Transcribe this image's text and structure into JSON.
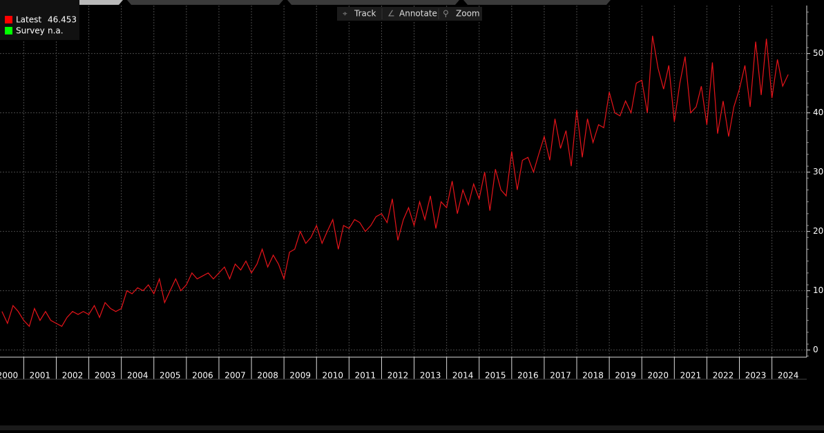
{
  "chart_data": {
    "type": "line",
    "legend": [
      {
        "name": "Latest",
        "color": "#ff0000"
      },
      {
        "name": "Survey",
        "color": "#00ff00",
        "value": "n.a."
      }
    ],
    "toolbar": [
      "Track",
      "Annotate",
      "Zoom"
    ],
    "series": [
      {
        "name": "Latest",
        "color": "#e8141a",
        "x": [
          2000.33,
          2000.5,
          2000.67,
          2000.83,
          2001,
          2001.17,
          2001.33,
          2001.5,
          2001.67,
          2001.83,
          2002,
          2002.17,
          2002.33,
          2002.5,
          2002.67,
          2002.83,
          2003,
          2003.17,
          2003.33,
          2003.5,
          2003.67,
          2003.83,
          2004,
          2004.17,
          2004.33,
          2004.5,
          2004.67,
          2004.83,
          2005,
          2005.17,
          2005.33,
          2005.5,
          2005.67,
          2005.83,
          2006,
          2006.17,
          2006.33,
          2006.5,
          2006.67,
          2006.83,
          2007,
          2007.17,
          2007.33,
          2007.5,
          2007.67,
          2007.83,
          2008,
          2008.17,
          2008.33,
          2008.5,
          2008.67,
          2008.83,
          2009,
          2009.17,
          2009.33,
          2009.5,
          2009.67,
          2009.83,
          2010,
          2010.17,
          2010.33,
          2010.5,
          2010.67,
          2010.83,
          2011,
          2011.17,
          2011.33,
          2011.5,
          2011.67,
          2011.83,
          2012,
          2012.17,
          2012.33,
          2012.5,
          2012.67,
          2012.83,
          2013,
          2013.17,
          2013.33,
          2013.5,
          2013.67,
          2013.83,
          2014,
          2014.17,
          2014.33,
          2014.5,
          2014.67,
          2014.83,
          2015,
          2015.17,
          2015.33,
          2015.5,
          2015.67,
          2015.83,
          2016,
          2016.17,
          2016.33,
          2016.5,
          2016.67,
          2016.83,
          2017,
          2017.17,
          2017.33,
          2017.5,
          2017.67,
          2017.83,
          2018,
          2018.17,
          2018.33,
          2018.5,
          2018.67,
          2018.83,
          2019,
          2019.17,
          2019.33,
          2019.5,
          2019.67,
          2019.83,
          2020,
          2020.17,
          2020.33,
          2020.5,
          2020.67,
          2020.83,
          2021,
          2021.17,
          2021.33,
          2021.5,
          2021.67,
          2021.83,
          2022,
          2022.17,
          2022.33,
          2022.5,
          2022.67,
          2022.83,
          2023,
          2023.17,
          2023.33,
          2023.5,
          2023.67,
          2023.83,
          2024,
          2024.17,
          2024.33,
          2024.5
        ],
        "values": [
          6.5,
          4.5,
          7.5,
          6.5,
          5,
          4,
          7,
          5,
          6.5,
          5,
          4.5,
          4,
          5.5,
          6.5,
          6,
          6.5,
          6,
          7.5,
          5.5,
          8,
          7,
          6.5,
          7,
          10,
          9.5,
          10.5,
          10,
          11,
          9.5,
          12,
          8,
          10,
          12,
          10,
          11,
          13,
          12,
          12.5,
          13,
          12,
          13,
          14,
          12,
          14.5,
          13.5,
          15,
          13,
          14.5,
          17,
          14,
          16,
          14.5,
          12,
          16.5,
          17,
          20,
          18,
          19,
          21,
          18,
          20,
          22,
          17,
          21,
          20.5,
          22,
          21.5,
          20,
          21,
          22.5,
          23,
          21.5,
          25.5,
          18.5,
          22,
          24,
          21,
          25,
          22,
          26,
          20.5,
          25,
          24,
          28.5,
          23,
          27,
          24.5,
          28,
          25.5,
          30,
          23.5,
          30.5,
          27,
          26,
          33.5,
          27,
          32,
          32.5,
          30,
          33,
          36,
          32,
          39,
          34,
          37,
          31,
          40.5,
          32.5,
          39,
          35,
          38,
          37.5,
          43.5,
          40,
          39.5,
          42,
          40,
          45,
          45.5,
          40,
          53,
          47.5,
          44,
          48,
          38.5,
          45,
          49.5,
          40,
          41,
          44.5,
          38,
          48.5,
          36.5,
          42,
          36,
          41,
          44,
          48,
          41,
          52,
          43,
          52.5,
          42.5,
          49,
          44.5,
          46.453
        ]
      }
    ],
    "xlim": [
      2000.27,
      2025.07
    ],
    "xticks": [
      2000,
      2001,
      2002,
      2003,
      2004,
      2005,
      2006,
      2007,
      2008,
      2009,
      2010,
      2011,
      2012,
      2013,
      2014,
      2015,
      2016,
      2017,
      2018,
      2019,
      2020,
      2021,
      2022,
      2023,
      2024
    ],
    "ylim": [
      -1.2,
      58.1
    ],
    "yticks": [
      0,
      10,
      20,
      30,
      40,
      50
    ],
    "grid": true
  }
}
